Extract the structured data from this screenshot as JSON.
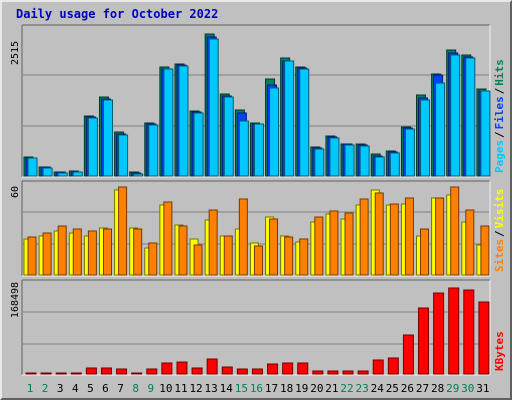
{
  "title": "Daily usage for October 2022",
  "colors": {
    "hits": "#00805c",
    "files": "#0040ff",
    "pages": "#00c8ff",
    "visits": "#ffff00",
    "sites": "#ff8000",
    "kbytes": "#ff0000",
    "weekend_day": "#00805c",
    "weekday_day": "#000000"
  },
  "chart_data": [
    {
      "type": "bar",
      "name": "hits-files-pages",
      "ymax_label": "2515",
      "ymax": 2515,
      "right_legend": [
        "Pages",
        "Files",
        "Hits"
      ],
      "x": [
        1,
        2,
        3,
        4,
        5,
        6,
        7,
        8,
        9,
        10,
        11,
        12,
        13,
        14,
        15,
        16,
        17,
        18,
        19,
        20,
        21,
        22,
        23,
        24,
        25,
        26,
        27,
        28,
        29,
        30,
        31
      ],
      "series": [
        {
          "name": "Hits",
          "values": [
            330,
            160,
            70,
            80,
            1020,
            1340,
            750,
            60,
            900,
            1860,
            1910,
            1100,
            2410,
            1400,
            1130,
            900,
            1650,
            2010,
            1850,
            490,
            680,
            550,
            540,
            370,
            420,
            830,
            1370,
            1730,
            2140,
            2060,
            1470
          ]
        },
        {
          "name": "Files",
          "values": [
            310,
            150,
            60,
            70,
            1000,
            1300,
            720,
            50,
            880,
            1820,
            1880,
            1080,
            2360,
            1360,
            1070,
            890,
            1550,
            1960,
            1830,
            470,
            660,
            540,
            520,
            340,
            400,
            810,
            1330,
            1720,
            2090,
            2020,
            1450
          ]
        },
        {
          "name": "Pages",
          "values": [
            300,
            140,
            50,
            60,
            980,
            1290,
            700,
            40,
            870,
            1810,
            1870,
            1070,
            2320,
            1340,
            940,
            880,
            1500,
            1950,
            1810,
            460,
            640,
            530,
            510,
            330,
            390,
            800,
            1290,
            1580,
            2060,
            2000,
            1440
          ]
        }
      ]
    },
    {
      "type": "bar",
      "name": "visits-sites",
      "ymax_label": "60",
      "ymax": 60,
      "right_legend": [
        "Sites",
        "Visits"
      ],
      "x": [
        1,
        2,
        3,
        4,
        5,
        6,
        7,
        8,
        9,
        10,
        11,
        12,
        13,
        14,
        15,
        16,
        17,
        18,
        19,
        20,
        21,
        22,
        23,
        24,
        25,
        26,
        27,
        28,
        29,
        30,
        31
      ],
      "series": [
        {
          "name": "Visits",
          "values": [
            24,
            26,
            29,
            28,
            26,
            31,
            56,
            31,
            18,
            46,
            33,
            24,
            36,
            26,
            30,
            21,
            38,
            26,
            22,
            35,
            40,
            37,
            46,
            56,
            46,
            47,
            26,
            51,
            53,
            35,
            20
          ]
        },
        {
          "name": "Sites",
          "values": [
            25,
            28,
            32,
            30,
            29,
            30,
            58,
            30,
            21,
            48,
            32,
            20,
            43,
            26,
            50,
            19,
            37,
            25,
            24,
            38,
            42,
            41,
            50,
            54,
            47,
            51,
            30,
            51,
            58,
            43,
            32
          ]
        }
      ]
    },
    {
      "type": "bar",
      "name": "kbytes",
      "ymax_label": "168498",
      "ymax": 168498,
      "right_legend": [
        "KBytes"
      ],
      "x": [
        1,
        2,
        3,
        4,
        5,
        6,
        7,
        8,
        9,
        10,
        11,
        12,
        13,
        14,
        15,
        16,
        17,
        18,
        19,
        20,
        21,
        22,
        23,
        24,
        25,
        26,
        27,
        28,
        29,
        30,
        31
      ],
      "series": [
        {
          "name": "KBytes",
          "values": [
            1200,
            1200,
            1200,
            1200,
            12000,
            12000,
            9000,
            1200,
            10000,
            20000,
            23000,
            12000,
            28000,
            13000,
            10000,
            10000,
            18000,
            20000,
            20000,
            5000,
            6000,
            6000,
            5000,
            25000,
            30000,
            72000,
            122000,
            150000,
            160000,
            155000,
            133000
          ]
        }
      ]
    }
  ]
}
